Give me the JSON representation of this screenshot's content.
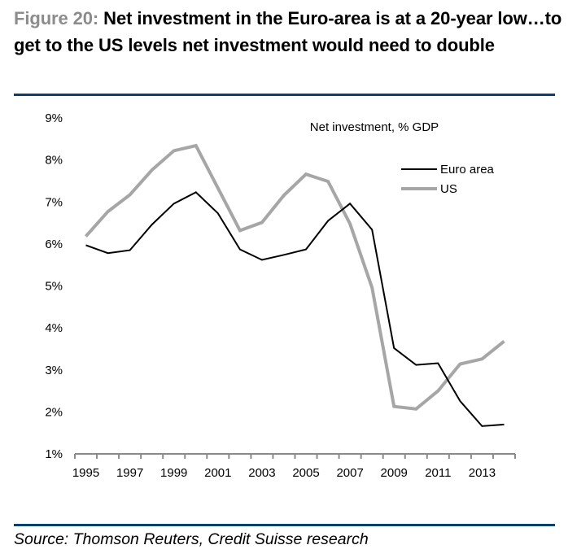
{
  "figure": {
    "label": "Figure 20:",
    "title": " Net investment in the Euro-area is at a 20-year low…to get to the US levels net investment would need to double",
    "source": "Source: Thomson Reuters, Credit Suisse research",
    "rule_color": "#0b3f6e",
    "label_color": "#8c8c8c"
  },
  "chart_data": {
    "type": "line",
    "title": "Net investment, % GDP",
    "xlabel": "",
    "ylabel": "",
    "x": [
      1995,
      1996,
      1997,
      1998,
      1999,
      2000,
      2001,
      2002,
      2003,
      2004,
      2005,
      2006,
      2007,
      2008,
      2009,
      2010,
      2011,
      2012,
      2013,
      2014
    ],
    "x_tick_labels": [
      "1995",
      "1997",
      "1999",
      "2001",
      "2003",
      "2005",
      "2007",
      "2009",
      "2011",
      "2013"
    ],
    "y_tick_labels": [
      "1%",
      "2%",
      "3%",
      "4%",
      "5%",
      "6%",
      "7%",
      "8%",
      "9%"
    ],
    "y_ticks": [
      1,
      2,
      3,
      4,
      5,
      6,
      7,
      8,
      9
    ],
    "ylim": [
      1,
      9
    ],
    "grid": false,
    "legend_position": "top-right",
    "series": [
      {
        "name": "Euro area",
        "color": "#000000",
        "values": [
          5.97,
          5.78,
          5.85,
          6.46,
          6.96,
          7.23,
          6.73,
          5.87,
          5.62,
          5.74,
          5.87,
          6.55,
          6.96,
          6.34,
          3.52,
          3.12,
          3.16,
          2.26,
          1.66,
          1.7
        ]
      },
      {
        "name": "US",
        "color": "#a6a6a6",
        "values": [
          6.18,
          6.77,
          7.17,
          7.76,
          8.22,
          8.34,
          7.33,
          6.32,
          6.51,
          7.16,
          7.66,
          7.49,
          6.48,
          4.96,
          2.13,
          2.07,
          2.5,
          3.14,
          3.26,
          3.68
        ]
      }
    ]
  }
}
